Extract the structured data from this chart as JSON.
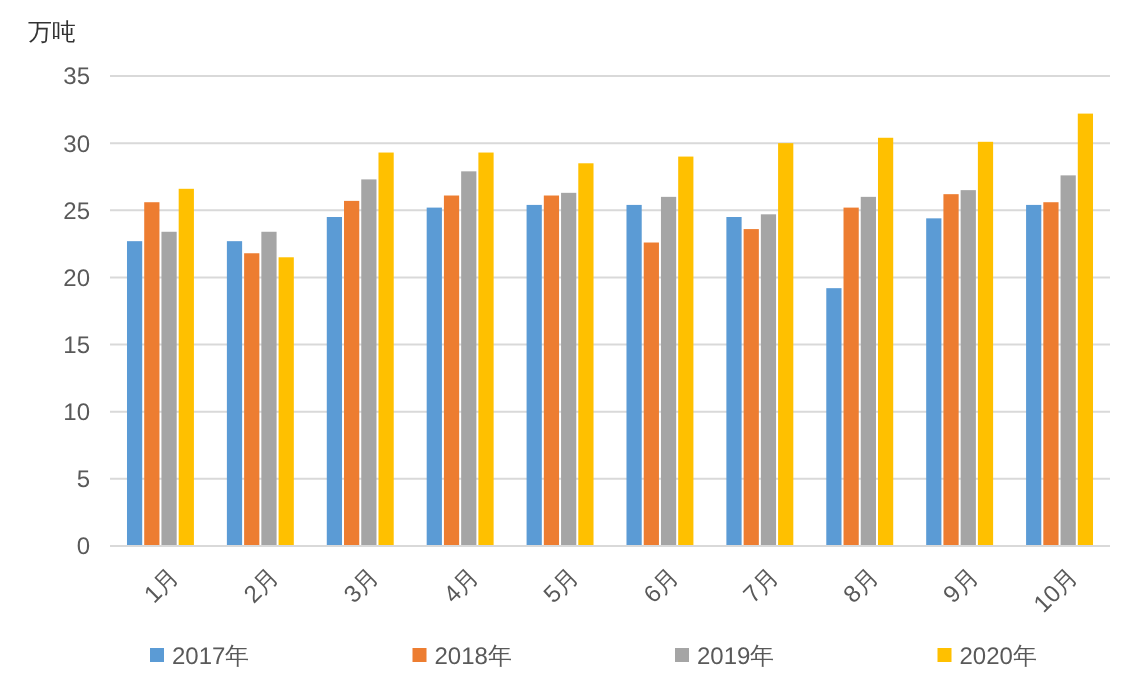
{
  "chart_data": {
    "type": "bar",
    "ylabel": "万吨",
    "categories": [
      "1月",
      "2月",
      "3月",
      "4月",
      "5月",
      "6月",
      "7月",
      "8月",
      "9月",
      "10月"
    ],
    "series": [
      {
        "name": "2017年",
        "color": "#5b9bd5",
        "values": [
          22.7,
          22.7,
          24.5,
          25.2,
          25.4,
          25.4,
          24.5,
          19.2,
          24.4,
          25.4
        ]
      },
      {
        "name": "2018年",
        "color": "#ed7d31",
        "values": [
          25.6,
          21.8,
          25.7,
          26.1,
          26.1,
          22.6,
          23.6,
          25.2,
          26.2,
          25.6
        ]
      },
      {
        "name": "2019年",
        "color": "#a5a5a5",
        "values": [
          23.4,
          23.4,
          27.3,
          27.9,
          26.3,
          26.0,
          24.7,
          26.0,
          26.5,
          27.6
        ]
      },
      {
        "name": "2020年",
        "color": "#ffc000",
        "values": [
          26.6,
          21.5,
          29.3,
          29.3,
          28.5,
          29.0,
          30.0,
          30.4,
          30.1,
          32.2
        ]
      }
    ],
    "ylim": [
      0,
      35
    ],
    "yticks": [
      0,
      5,
      10,
      15,
      20,
      25,
      30,
      35
    ],
    "grid": "y",
    "legend": "bottom"
  }
}
